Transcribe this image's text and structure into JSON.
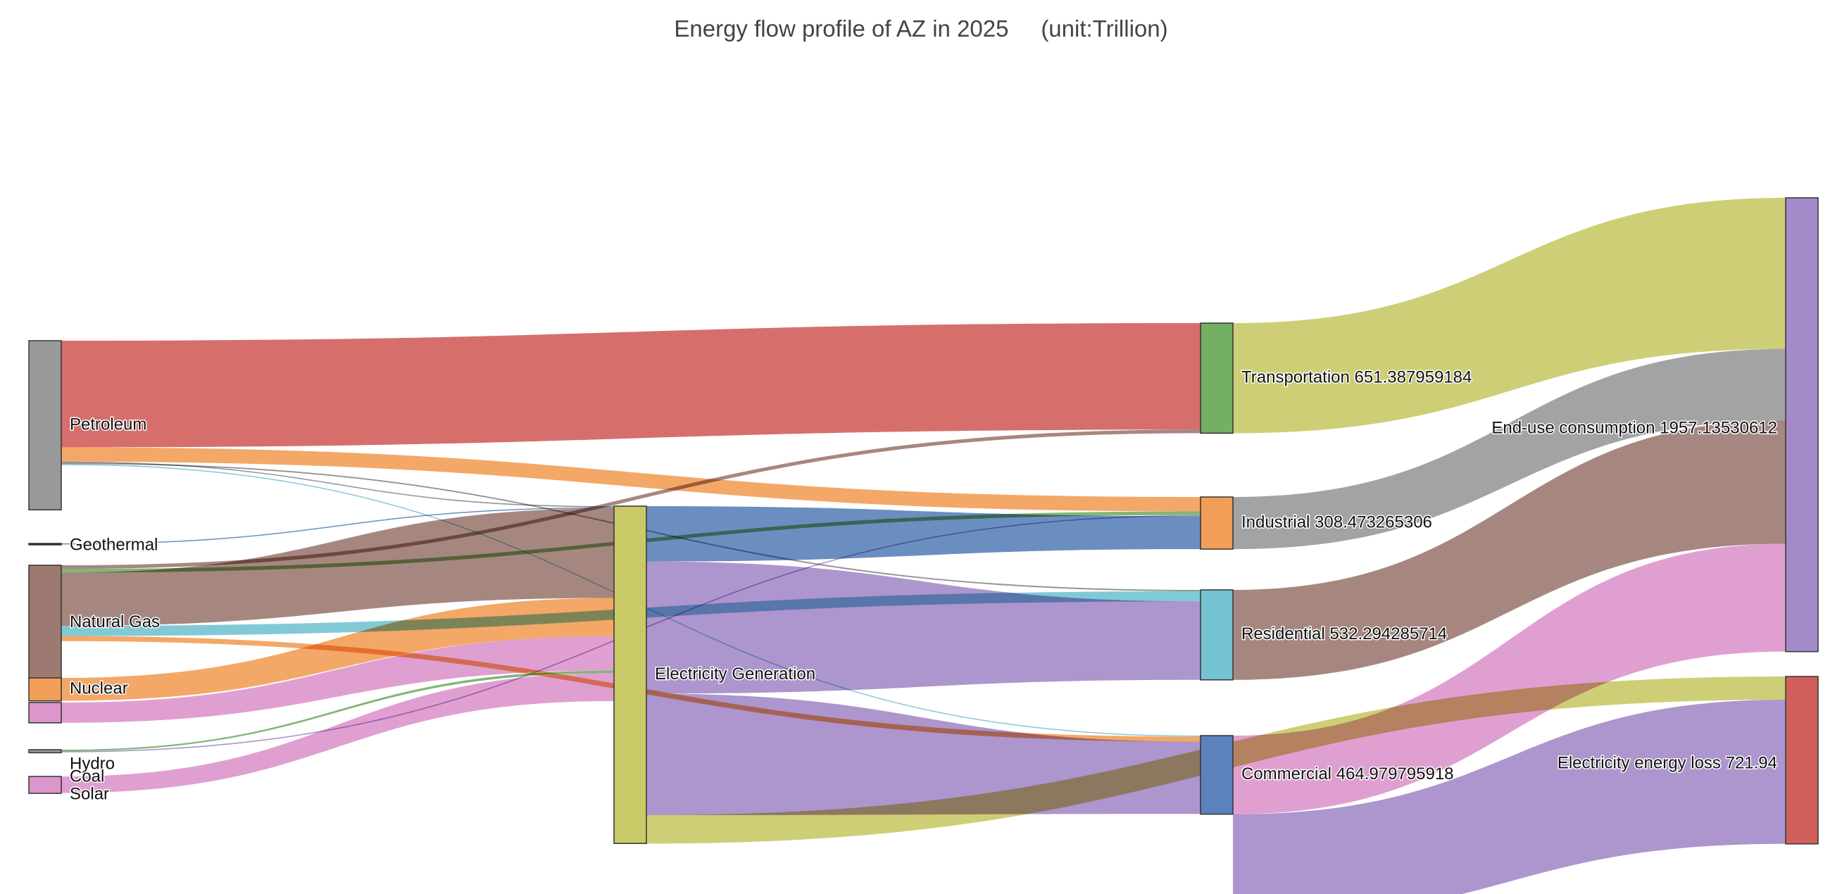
{
  "chart_data": {
    "type": "sankey",
    "title": "Energy flow profile of AZ in 2025     (unit:Trillion)",
    "nodes": [
      {
        "id": "petroleum",
        "label": "Petroleum",
        "value": 1000,
        "color": "#999999"
      },
      {
        "id": "geothermal",
        "label": "Geothermal",
        "value": 1,
        "color": "#222222"
      },
      {
        "id": "natgas",
        "label": "Natural Gas",
        "value": 680,
        "color": "#9C7A72"
      },
      {
        "id": "nuclear",
        "label": "Nuclear",
        "value": 136,
        "color": "#F29E58"
      },
      {
        "id": "hydro",
        "label": "Hydro",
        "value": 120,
        "color": "#DC96CC"
      },
      {
        "id": "coal",
        "label": "Coal",
        "value": 18,
        "color": "#999999"
      },
      {
        "id": "solar",
        "label": "Solar",
        "value": 100,
        "color": "#DC96CC"
      },
      {
        "id": "elecgen",
        "label": "Electricity Generation",
        "value": 1185.17,
        "color": "#C9C967"
      },
      {
        "id": "transport",
        "label": "Transportation 651.387959184",
        "value": 651.388,
        "color": "#74AF64"
      },
      {
        "id": "industrial",
        "label": "Industrial 308.473265306",
        "value": 308.473,
        "color": "#F29E58"
      },
      {
        "id": "residential",
        "label": "Residential 532.294285714",
        "value": 532.294,
        "color": "#74C3D2"
      },
      {
        "id": "commercial",
        "label": "Commercial 464.979795918",
        "value": 464.98,
        "color": "#5B82BA"
      },
      {
        "id": "enduse",
        "label": "End-use consumption 1957.13530612",
        "value": 1957.135,
        "color": "#A48AC8"
      },
      {
        "id": "loss",
        "label": "Electricity energy loss 721.94",
        "value": 721.94,
        "color": "#D15F5C"
      }
    ],
    "links": [
      {
        "source": "petroleum",
        "target": "transport",
        "value": 630,
        "color": "#D15F5C"
      },
      {
        "source": "petroleum",
        "target": "industrial",
        "value": 85,
        "color": "#F29E58"
      },
      {
        "source": "petroleum",
        "target": "elecgen",
        "value": 4,
        "color": "#888888"
      },
      {
        "source": "petroleum",
        "target": "residential",
        "value": 8,
        "color": "#888888"
      },
      {
        "source": "petroleum",
        "target": "commercial",
        "value": 4,
        "color": "#74C3D2"
      },
      {
        "source": "geothermal",
        "target": "elecgen",
        "value": 1,
        "color": "#5B82BA"
      },
      {
        "source": "natgas",
        "target": "transport",
        "value": 21.388,
        "color": "#9C7A72"
      },
      {
        "source": "natgas",
        "target": "industrial",
        "value": 22,
        "color": "#74AF64"
      },
      {
        "source": "natgas",
        "target": "elecgen",
        "value": 315,
        "color": "#9C7A72"
      },
      {
        "source": "natgas",
        "target": "residential",
        "value": 60,
        "color": "#74C3D2"
      },
      {
        "source": "natgas",
        "target": "commercial",
        "value": 30,
        "color": "#F29E58"
      },
      {
        "source": "nuclear",
        "target": "elecgen",
        "value": 135,
        "color": "#F29E58"
      },
      {
        "source": "hydro",
        "target": "elecgen",
        "value": 120,
        "color": "#DC96CC"
      },
      {
        "source": "coal",
        "target": "elecgen",
        "value": 9,
        "color": "#74AF64"
      },
      {
        "source": "coal",
        "target": "industrial",
        "value": 7,
        "color": "#A48AC8"
      },
      {
        "source": "solar",
        "target": "elecgen",
        "value": 98,
        "color": "#DC96CC"
      },
      {
        "source": "elecgen",
        "target": "industrial",
        "value": 194.473,
        "color": "#5B82BA"
      },
      {
        "source": "elecgen",
        "target": "residential",
        "value": 464.294,
        "color": "#A48AC8"
      },
      {
        "source": "elecgen",
        "target": "commercial",
        "value": 426.98,
        "color": "#A48AC8"
      },
      {
        "source": "elecgen",
        "target": "loss",
        "value": 100,
        "color": "#C9C967"
      },
      {
        "source": "transport",
        "target": "enduse",
        "value": 651.388,
        "color": "#C9C967"
      },
      {
        "source": "industrial",
        "target": "enduse",
        "value": 308.473,
        "color": "#999999"
      },
      {
        "source": "residential",
        "target": "enduse",
        "value": 532.294,
        "color": "#9C7A72"
      },
      {
        "source": "commercial",
        "target": "enduse",
        "value": 464.98,
        "color": "#DC96CC"
      },
      {
        "source": "commercial",
        "target": "loss",
        "value": 621.94,
        "color": "#A48AC8"
      }
    ]
  }
}
